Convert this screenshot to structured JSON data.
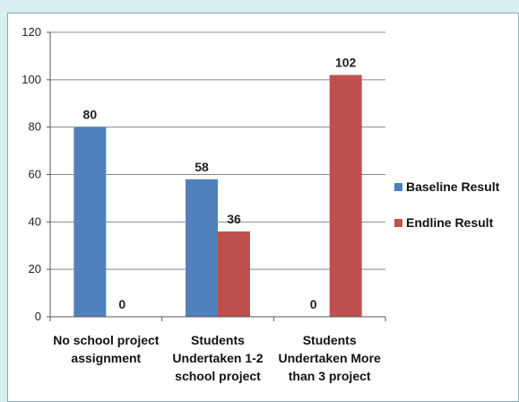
{
  "chart_data": {
    "type": "bar",
    "categories": [
      [
        "No school project",
        "assignment"
      ],
      [
        "Students",
        "Undertaken 1-2",
        "school project"
      ],
      [
        "Students",
        "Undertaken More",
        "than 3 project"
      ]
    ],
    "series": [
      {
        "name": "Baseline Result",
        "values": [
          80,
          58,
          0
        ],
        "color": "#4f81bd"
      },
      {
        "name": "Endline Result",
        "values": [
          0,
          36,
          102
        ],
        "color": "#c0504d"
      }
    ],
    "ylim": [
      0,
      120
    ],
    "yticks": [
      0,
      20,
      40,
      60,
      80,
      100,
      120
    ],
    "grid": true,
    "legend": "right"
  }
}
